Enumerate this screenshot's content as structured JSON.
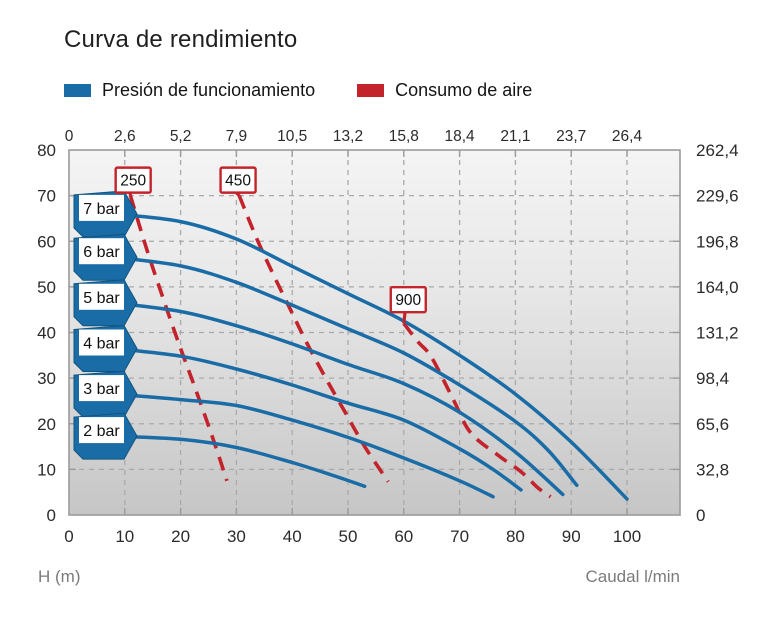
{
  "title": "Curva de rendimiento",
  "legend": {
    "items": [
      {
        "label": "Presión de funcionamiento",
        "color": "#1a6ca6"
      },
      {
        "label": "Consumo de aire",
        "color": "#c3232b"
      }
    ]
  },
  "axes": {
    "top_ticks": [
      "0",
      "2,6",
      "5,2",
      "7,9",
      "10,5",
      "13,2",
      "15,8",
      "18,4",
      "21,1",
      "23,7",
      "26,4"
    ],
    "bottom_ticks": [
      "0",
      "10",
      "20",
      "30",
      "40",
      "50",
      "60",
      "70",
      "80",
      "90",
      "100"
    ],
    "left_ticks": [
      "80",
      "70",
      "60",
      "50",
      "40",
      "30",
      "20",
      "10",
      "0"
    ],
    "right_ticks": [
      "262,4",
      "229,6",
      "196,8",
      "164,0",
      "131,2",
      "98,4",
      "65,6",
      "32,8",
      "0"
    ],
    "left_unit": "H (m)",
    "bottom_unit": "Caudal l/min"
  },
  "colors": {
    "blue": "#1a6ca6",
    "blue_dark": "#11547f",
    "red": "#c3232b",
    "grid": "#a9a9a9",
    "border": "#9b9b9b",
    "tick_text": "#2b2b2b",
    "plot_bg_top": "#f4f4f4",
    "plot_bg_mid": "#e9e9e9",
    "plot_bg_bottom": "#c6c6c6"
  },
  "chart_data": {
    "type": "line",
    "title": "Curva de rendimiento",
    "xlabel": "Caudal l/min",
    "ylabel": "H (m)",
    "xlim": [
      0,
      109.5
    ],
    "ylim": [
      0,
      80
    ],
    "grid": true,
    "top_scale": {
      "values": [
        0,
        2.6,
        5.2,
        7.9,
        10.5,
        13.2,
        15.8,
        18.4,
        21.1,
        23.7,
        26.4
      ],
      "aligned_to_x": [
        0,
        10,
        20,
        30,
        40,
        50,
        60,
        70,
        80,
        90,
        100
      ]
    },
    "right_scale": {
      "values": [
        262.4,
        229.6,
        196.8,
        164.0,
        131.2,
        98.4,
        65.6,
        32.8,
        0
      ],
      "aligned_to_y": [
        80,
        70,
        60,
        50,
        40,
        30,
        20,
        10,
        0
      ]
    },
    "series": [
      {
        "name": "7 bar",
        "group": "Presión de funcionamiento",
        "points": [
          [
            8,
            66
          ],
          [
            20,
            64.3
          ],
          [
            30,
            60.5
          ],
          [
            40,
            54.5
          ],
          [
            50,
            48.5
          ],
          [
            60,
            42.5
          ],
          [
            70,
            35
          ],
          [
            80,
            26.5
          ],
          [
            90,
            16
          ],
          [
            100,
            3.5
          ]
        ]
      },
      {
        "name": "6 bar",
        "group": "Presión de funcionamiento",
        "points": [
          [
            8,
            56.5
          ],
          [
            20,
            54.6
          ],
          [
            30,
            51
          ],
          [
            40,
            46
          ],
          [
            50,
            40.8
          ],
          [
            60,
            35.5
          ],
          [
            70,
            28.5
          ],
          [
            80,
            20.5
          ],
          [
            86,
            14
          ],
          [
            91,
            6.5
          ]
        ]
      },
      {
        "name": "5 bar",
        "group": "Presión de funcionamiento",
        "points": [
          [
            8,
            46.5
          ],
          [
            20,
            44.6
          ],
          [
            30,
            41.5
          ],
          [
            40,
            37.5
          ],
          [
            50,
            33
          ],
          [
            60,
            28.8
          ],
          [
            70,
            22.5
          ],
          [
            80,
            13.8
          ],
          [
            88.5,
            4.5
          ]
        ]
      },
      {
        "name": "4 bar",
        "group": "Presión de funcionamiento",
        "points": [
          [
            8,
            36.5
          ],
          [
            20,
            34.8
          ],
          [
            30,
            32
          ],
          [
            40,
            28.5
          ],
          [
            50,
            24.5
          ],
          [
            60,
            20.8
          ],
          [
            70,
            14.5
          ],
          [
            76,
            10
          ],
          [
            81,
            5.5
          ]
        ]
      },
      {
        "name": "3 bar",
        "group": "Presión de funcionamiento",
        "points": [
          [
            8,
            26.5
          ],
          [
            20,
            25.3
          ],
          [
            30,
            24
          ],
          [
            40,
            20.8
          ],
          [
            50,
            17
          ],
          [
            60,
            12.5
          ],
          [
            70,
            7.5
          ],
          [
            76,
            4
          ]
        ]
      },
      {
        "name": "2 bar",
        "group": "Presión de funcionamiento",
        "points": [
          [
            8,
            17.3
          ],
          [
            20,
            16.6
          ],
          [
            30,
            14.8
          ],
          [
            40,
            11.5
          ],
          [
            47,
            8.8
          ],
          [
            53,
            6.3
          ]
        ]
      }
    ],
    "air_series": [
      {
        "name": "250",
        "group": "Consumo de aire",
        "label_pos": [
          11.5,
          73.4
        ],
        "points": [
          [
            11,
            70
          ],
          [
            14,
            58
          ],
          [
            17,
            47
          ],
          [
            20,
            36.5
          ],
          [
            23,
            26.5
          ],
          [
            26,
            16
          ],
          [
            28.3,
            7.5
          ]
        ]
      },
      {
        "name": "450",
        "group": "Consumo de aire",
        "label_pos": [
          30.3,
          73.4
        ],
        "points": [
          [
            30.5,
            70
          ],
          [
            33.5,
            61
          ],
          [
            36.5,
            53
          ],
          [
            39.5,
            45.5
          ],
          [
            42.5,
            38
          ],
          [
            46,
            30
          ],
          [
            49.5,
            22.5
          ],
          [
            53,
            15
          ],
          [
            57.2,
            7.3
          ]
        ]
      },
      {
        "name": "900",
        "group": "Consumo de aire",
        "label_pos": [
          60.8,
          47.2
        ],
        "points": [
          [
            60,
            42
          ],
          [
            62.5,
            38
          ],
          [
            65,
            34.5
          ],
          [
            69,
            25
          ],
          [
            72,
            18
          ],
          [
            77,
            13
          ],
          [
            81,
            9.5
          ],
          [
            84,
            6
          ],
          [
            86.3,
            4
          ]
        ]
      }
    ]
  }
}
